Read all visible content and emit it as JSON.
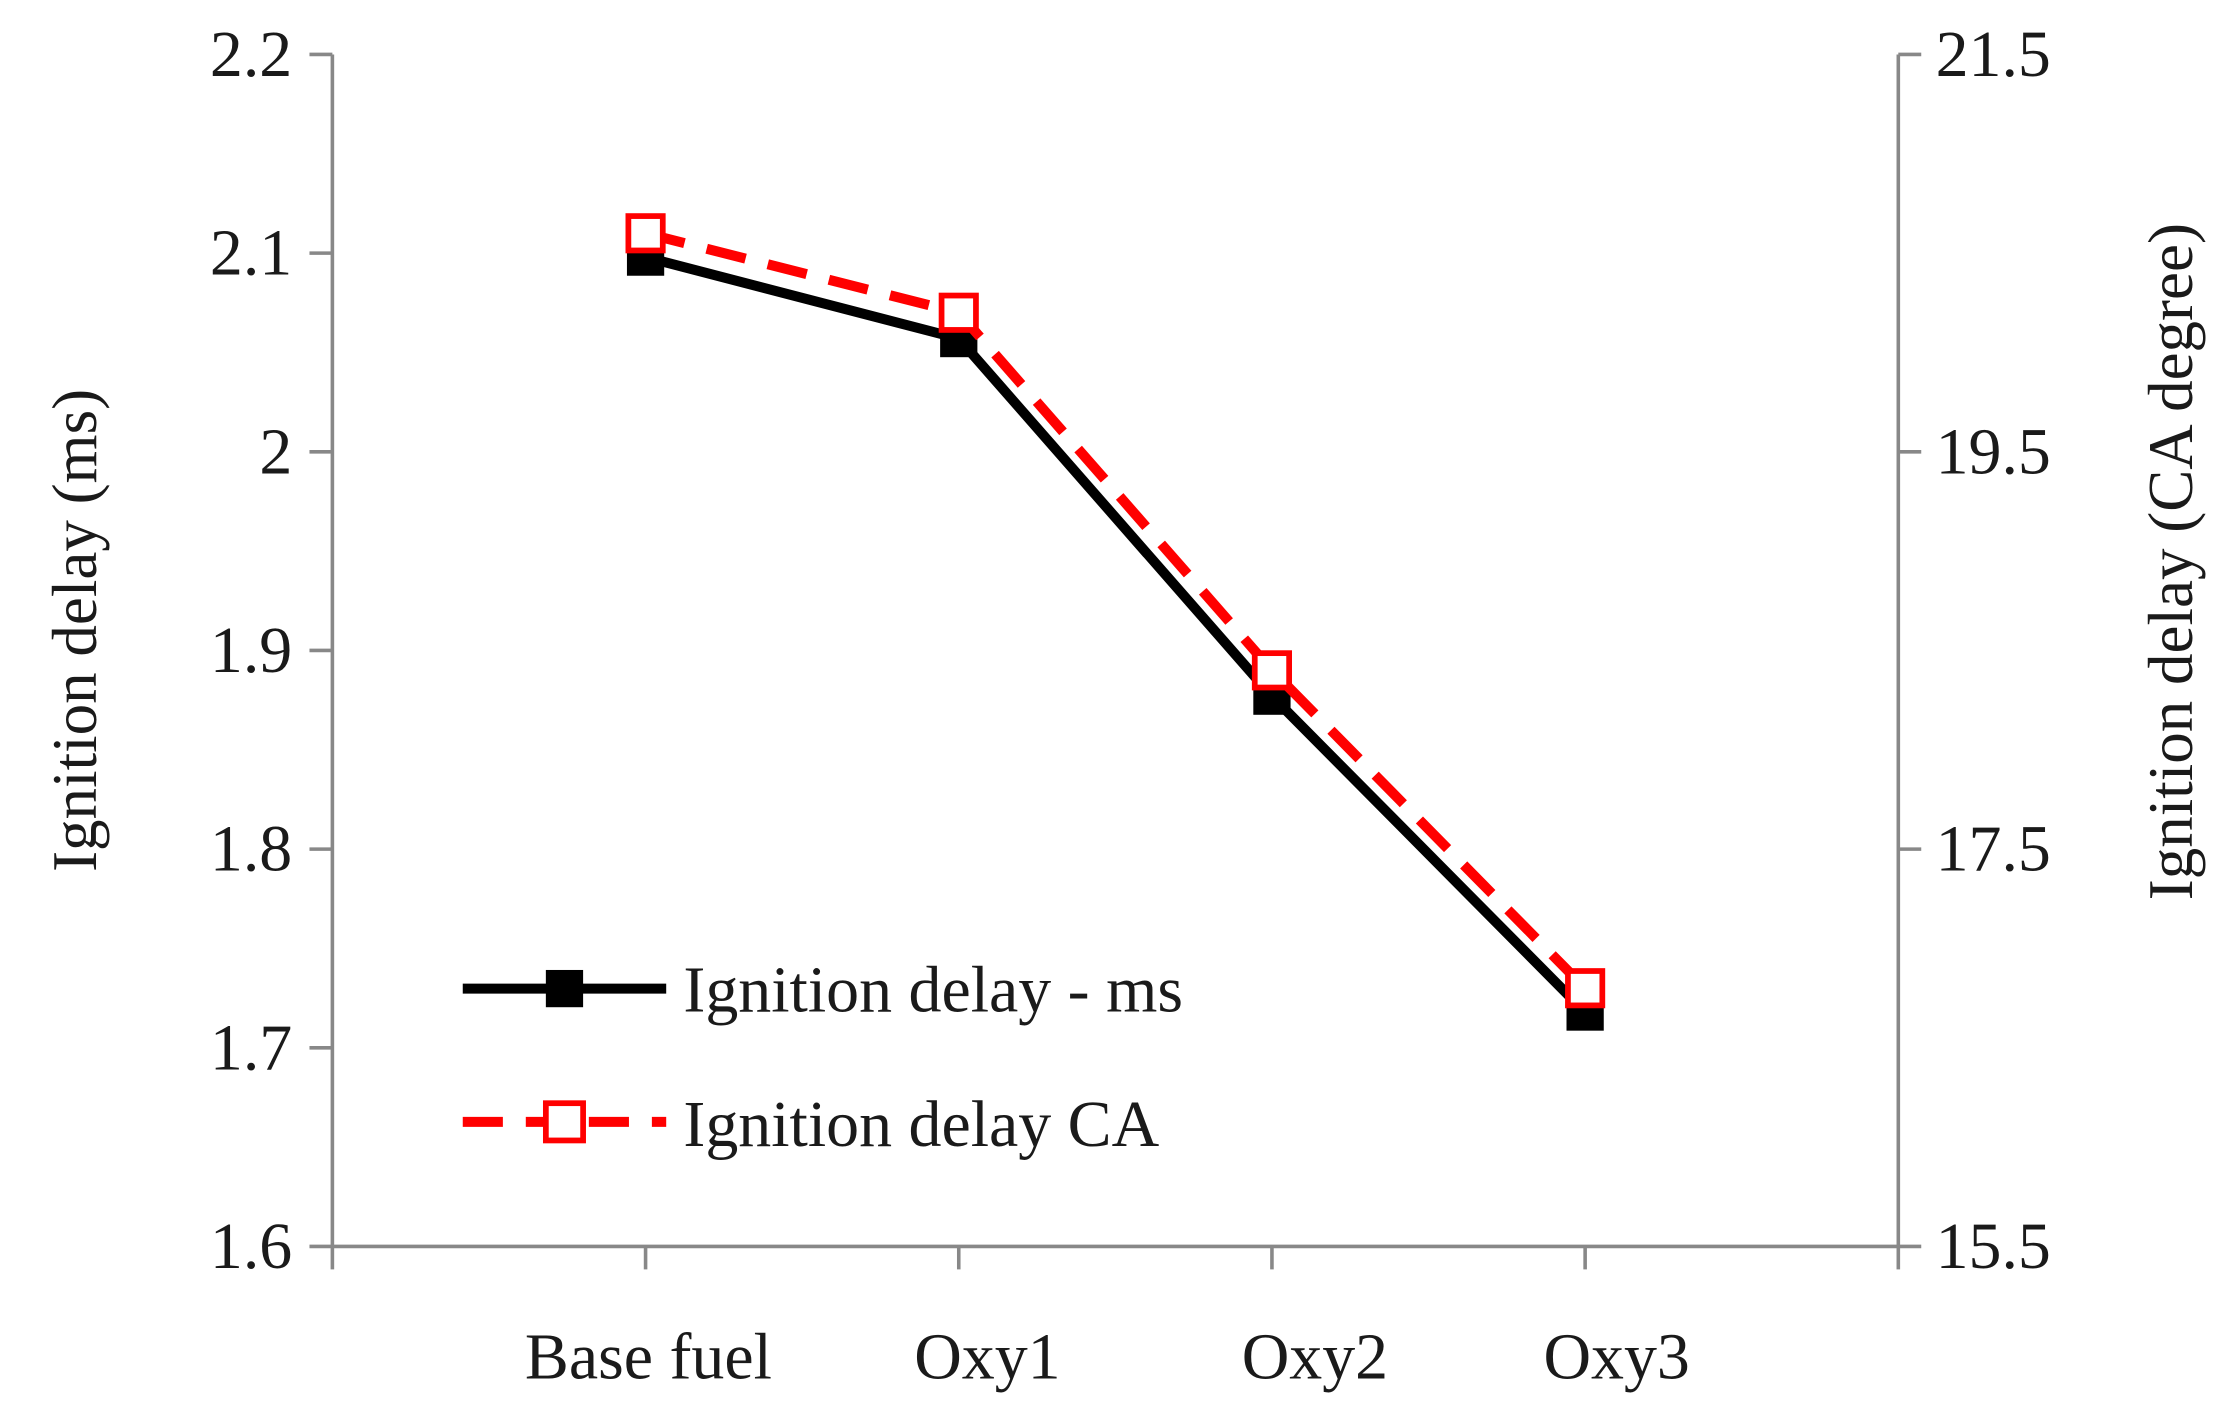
{
  "chart_data": {
    "type": "line",
    "title": "",
    "categories": [
      "Base fuel",
      "Oxy1",
      "Oxy2",
      "Oxy3"
    ],
    "ylabel_left": "Ignition delay (ms)",
    "ylabel_right": "Ignition delay (CA degree)",
    "ylim_left": [
      1.6,
      2.2
    ],
    "yticks_left": [
      "1.6",
      "1.7",
      "1.8",
      "1.9",
      "2",
      "2.1",
      "2.2"
    ],
    "ylim_right": [
      15.5,
      21.5
    ],
    "yticks_right": [
      "15.5",
      "17.5",
      "19.5",
      "21.5"
    ],
    "grid": false,
    "legend_position": "bottom-left",
    "series": [
      {
        "name": "Ignition delay - ms",
        "axis": "left",
        "values": [
          2.098,
          2.057,
          1.877,
          1.718
        ],
        "color": "#000000",
        "style": "solid",
        "marker": "filled-square"
      },
      {
        "name": "Ignition delay CA",
        "axis": "right",
        "values": [
          20.6,
          20.2,
          18.4,
          16.8
        ],
        "color": "#ff0000",
        "style": "dashed",
        "marker": "open-square"
      }
    ]
  }
}
